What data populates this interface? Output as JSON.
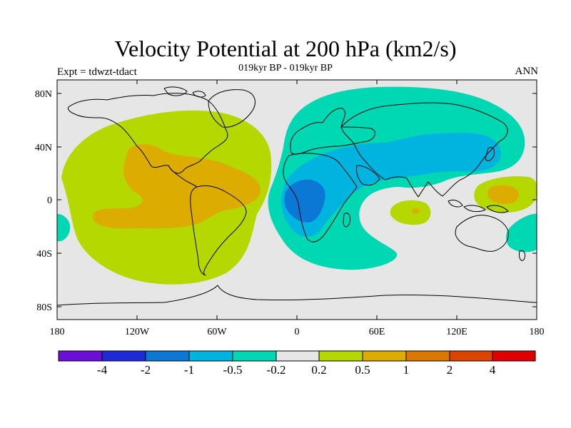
{
  "title": "Velocity Potential at 200 hPa (km2/s)",
  "subtitle": "019kyr BP - 019kyr BP",
  "left_label": "Expt = tdwzt-tdact",
  "right_label": "ANN",
  "map": {
    "lon_range": [
      -180,
      180
    ],
    "lat_range": [
      -90,
      90
    ],
    "lat_ticks": [
      "80N",
      "40N",
      "0",
      "40S",
      "80S"
    ],
    "lon_ticks": [
      "180",
      "120W",
      "60W",
      "0",
      "60E",
      "120E",
      "180"
    ]
  },
  "colorbar": {
    "colors": [
      "#6a0fd8",
      "#1e2ad8",
      "#0a78d4",
      "#00b4e0",
      "#00d8b4",
      "#e6e6e6",
      "#b4d800",
      "#dcac00",
      "#dc7800",
      "#dc4400",
      "#e00000"
    ],
    "labels": [
      "-4",
      "-2",
      "-1",
      "-0.5",
      "-0.2",
      "0.2",
      "0.5",
      "1",
      "2",
      "4"
    ]
  },
  "colors": {
    "background": "#e6e6e6",
    "land_line": "#000000"
  }
}
